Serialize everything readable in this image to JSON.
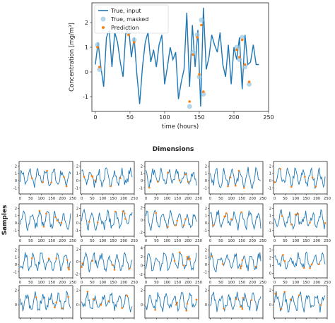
{
  "colors": {
    "line": "#1f77b4",
    "masked": "#9ecae1",
    "prediction": "#ff7f0e"
  },
  "main_chart": {
    "type": "line",
    "xlabel": "time (hours)",
    "ylabel": "Concentration [mg/m³]",
    "xlim": [
      -5,
      250
    ],
    "ylim": [
      -1.6,
      2.8
    ],
    "xticks": [
      0,
      50,
      100,
      150,
      200,
      250
    ],
    "yticks": [
      -1,
      0,
      1,
      2
    ],
    "legend_position": "top-left",
    "legend": [
      "True, input",
      "True, masked",
      "Prediction"
    ]
  },
  "chart_data": [
    {
      "type": "line",
      "series": [
        {
          "name": "True, input",
          "x": [
            0,
            4,
            8,
            12,
            16,
            20,
            24,
            28,
            32,
            36,
            40,
            44,
            48,
            52,
            56,
            60,
            64,
            68,
            72,
            76,
            80,
            84,
            88,
            92,
            96,
            100,
            104,
            108,
            112,
            116,
            120,
            124,
            128,
            132,
            136,
            140,
            144,
            148,
            152,
            156,
            160,
            164,
            168,
            172,
            176,
            180,
            184,
            188,
            192,
            196,
            200,
            204,
            208,
            212,
            216,
            220,
            224,
            228,
            232,
            236
          ],
          "y": [
            0.3,
            1.2,
            0.2,
            -0.6,
            1.4,
            1.7,
            0.2,
            1.6,
            1.2,
            0.4,
            -0.2,
            1.6,
            1.8,
            0.6,
            1.4,
            -0.1,
            -1.3,
            0.2,
            1.2,
            1.6,
            0.4,
            0.9,
            0.2,
            1.1,
            1.5,
            -0.5,
            0.2,
            1.0,
            0.5,
            0.8,
            -1.1,
            -0.4,
            0.1,
            2.4,
            -0.6,
            1.9,
            0.2,
            1.7,
            -1.4,
            2.6,
            0.1,
            0.6,
            1.5,
            1.1,
            0.8,
            1.6,
            0.3,
            -0.2,
            1.1,
            -0.5,
            1.0,
            0.5,
            1.4,
            -0.7,
            1.5,
            0.3,
            0.4,
            1.1,
            0.3,
            0.3
          ]
        }
      ],
      "masked_points": {
        "x": [
          3,
          6,
          48,
          56,
          136,
          141,
          147,
          150,
          153,
          156,
          204,
          208,
          212,
          216,
          222
        ],
        "y": [
          1.1,
          0.1,
          1.6,
          1.3,
          -1.4,
          0.8,
          1.5,
          -0.2,
          2.1,
          -0.9,
          1.0,
          0.5,
          1.4,
          0.2,
          -0.5
        ]
      },
      "prediction_points": {
        "x": [
          3,
          6,
          48,
          56,
          136,
          141,
          147,
          150,
          153,
          156,
          204,
          208,
          212,
          216,
          222
        ],
        "y": [
          1.0,
          0.2,
          1.5,
          1.2,
          -1.2,
          0.7,
          1.4,
          -0.1,
          1.9,
          -0.8,
          0.9,
          0.6,
          1.3,
          0.3,
          -0.4
        ]
      }
    }
  ],
  "grid": {
    "title": "Dimensions",
    "ylabel": "Samples",
    "xticks": [
      0,
      50,
      100,
      150,
      200,
      250
    ],
    "panels": [
      {
        "yticks": [
          "2",
          "1",
          "0",
          "-1"
        ],
        "ylim": [
          -1.8,
          2.6
        ]
      },
      {
        "yticks": [
          "2",
          "1",
          "0",
          "-1"
        ],
        "ylim": [
          -1.8,
          2.6
        ]
      },
      {
        "yticks": [
          "2",
          "1",
          "0",
          "-1"
        ],
        "ylim": [
          -1.8,
          2.6
        ]
      },
      {
        "yticks": [
          "2",
          "1",
          "0",
          "-1"
        ],
        "ylim": [
          -1.8,
          2.6
        ]
      },
      {
        "yticks": [
          "2",
          "1",
          "0",
          "-1"
        ],
        "ylim": [
          -1.8,
          2.6
        ]
      },
      {
        "yticks": [
          "2",
          "1",
          "0",
          "-1"
        ],
        "ylim": [
          -1.8,
          2.6
        ]
      },
      {
        "yticks": [
          "2",
          "1",
          "0",
          "-1"
        ],
        "ylim": [
          -1.8,
          2.6
        ]
      },
      {
        "yticks": [
          "2",
          "0",
          "-2"
        ],
        "ylim": [
          -2.6,
          2.6
        ]
      },
      {
        "yticks": [
          "2",
          "1",
          "0",
          "-1"
        ],
        "ylim": [
          -1.8,
          2.6
        ]
      },
      {
        "yticks": [
          "2",
          "1",
          "0",
          "-1"
        ],
        "ylim": [
          -1.8,
          2.6
        ]
      },
      {
        "yticks": [
          "2",
          "1",
          "0",
          "-1"
        ],
        "ylim": [
          -1.8,
          2.6
        ]
      },
      {
        "yticks": [
          "2",
          "0",
          "-2"
        ],
        "ylim": [
          -2.6,
          2.6
        ]
      },
      {
        "yticks": [
          "4",
          "2",
          "0",
          "-2"
        ],
        "ylim": [
          -2.8,
          4.6
        ]
      },
      {
        "yticks": [
          "2",
          "1",
          "0",
          "-1"
        ],
        "ylim": [
          -1.8,
          2.6
        ]
      },
      {
        "yticks": [
          "3",
          "2",
          "1",
          "0"
        ],
        "ylim": [
          -0.6,
          3.6
        ]
      },
      {
        "yticks": [
          "2",
          "0"
        ],
        "ylim": [
          -1.8,
          2.6
        ]
      },
      {
        "yticks": [
          "2",
          "0"
        ],
        "ylim": [
          -1.8,
          2.6
        ]
      },
      {
        "yticks": [
          "2",
          "0"
        ],
        "ylim": [
          -1.8,
          2.6
        ]
      },
      {
        "yticks": [
          "2",
          "0"
        ],
        "ylim": [
          -1.8,
          2.6
        ]
      },
      {
        "yticks": [
          "2",
          "0"
        ],
        "ylim": [
          -1.8,
          2.6
        ]
      }
    ]
  }
}
